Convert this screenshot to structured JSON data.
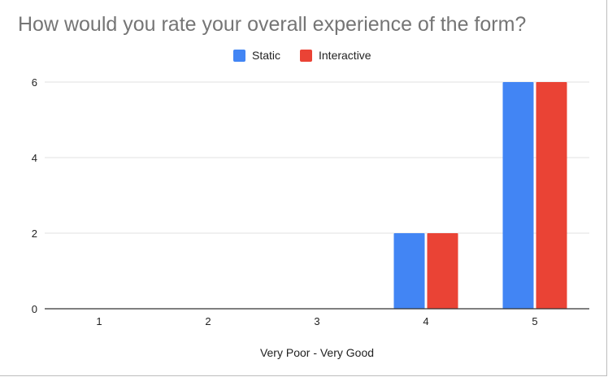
{
  "chart_data": {
    "type": "bar",
    "title": "How would you rate your overall experience of the form?",
    "xlabel": "Very Poor - Very Good",
    "ylabel": "",
    "categories": [
      "1",
      "2",
      "3",
      "4",
      "5"
    ],
    "series": [
      {
        "name": "Static",
        "values": [
          0,
          0,
          0,
          2,
          6
        ],
        "color": "#4285f4"
      },
      {
        "name": "Interactive",
        "values": [
          0,
          0,
          0,
          2,
          6
        ],
        "color": "#ea4335"
      }
    ],
    "ylim": [
      0,
      6
    ],
    "yticks": [
      "0",
      "2",
      "4",
      "6"
    ],
    "grid": true,
    "legend_position": "top-center",
    "colors": {
      "gridline": "#e0e0e0",
      "baseline": "#333333",
      "tick_text": "#222222",
      "title_text": "#757575"
    }
  }
}
